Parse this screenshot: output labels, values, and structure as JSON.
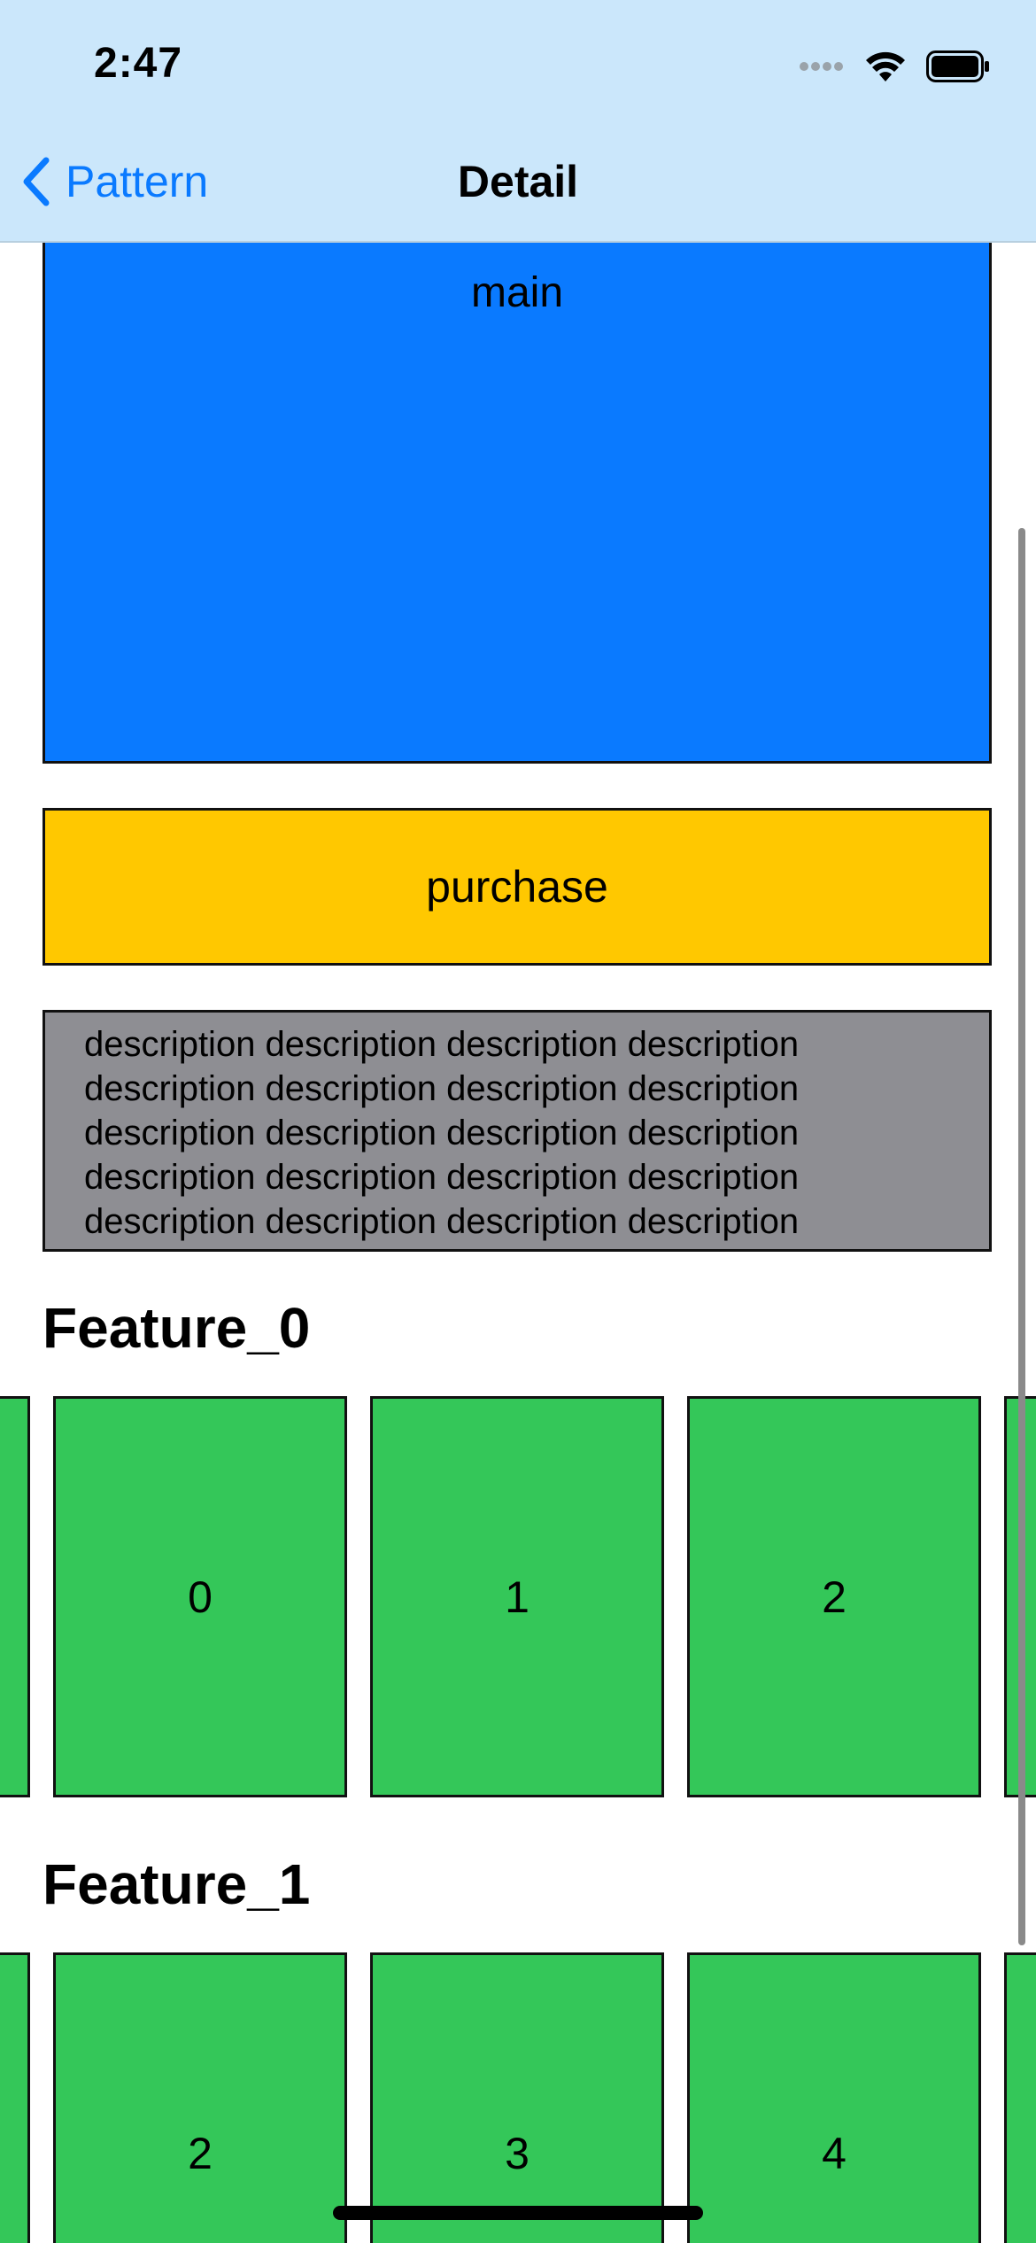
{
  "status_bar": {
    "time": "2:47",
    "icons": [
      "signal-dots-icon",
      "wifi-icon",
      "battery-icon"
    ]
  },
  "nav": {
    "back_label": "Pattern",
    "title": "Detail"
  },
  "main_block": {
    "label": "main"
  },
  "purchase": {
    "label": "purchase"
  },
  "description": {
    "lines": [
      "description description description description",
      "description description description description",
      "description description description description",
      "description description description description",
      "description description description description"
    ]
  },
  "features": [
    {
      "title": "Feature_0",
      "items": [
        "",
        "0",
        "1",
        "2",
        ""
      ]
    },
    {
      "title": "Feature_1",
      "items": [
        "",
        "2",
        "3",
        "4",
        ""
      ]
    }
  ],
  "colors": {
    "nav_background": "#cbe7fb",
    "accent": "#0a7aff",
    "main": "#0a7aff",
    "purchase": "#ffc800",
    "description": "#8e8e93",
    "feature_card": "#34c759"
  }
}
